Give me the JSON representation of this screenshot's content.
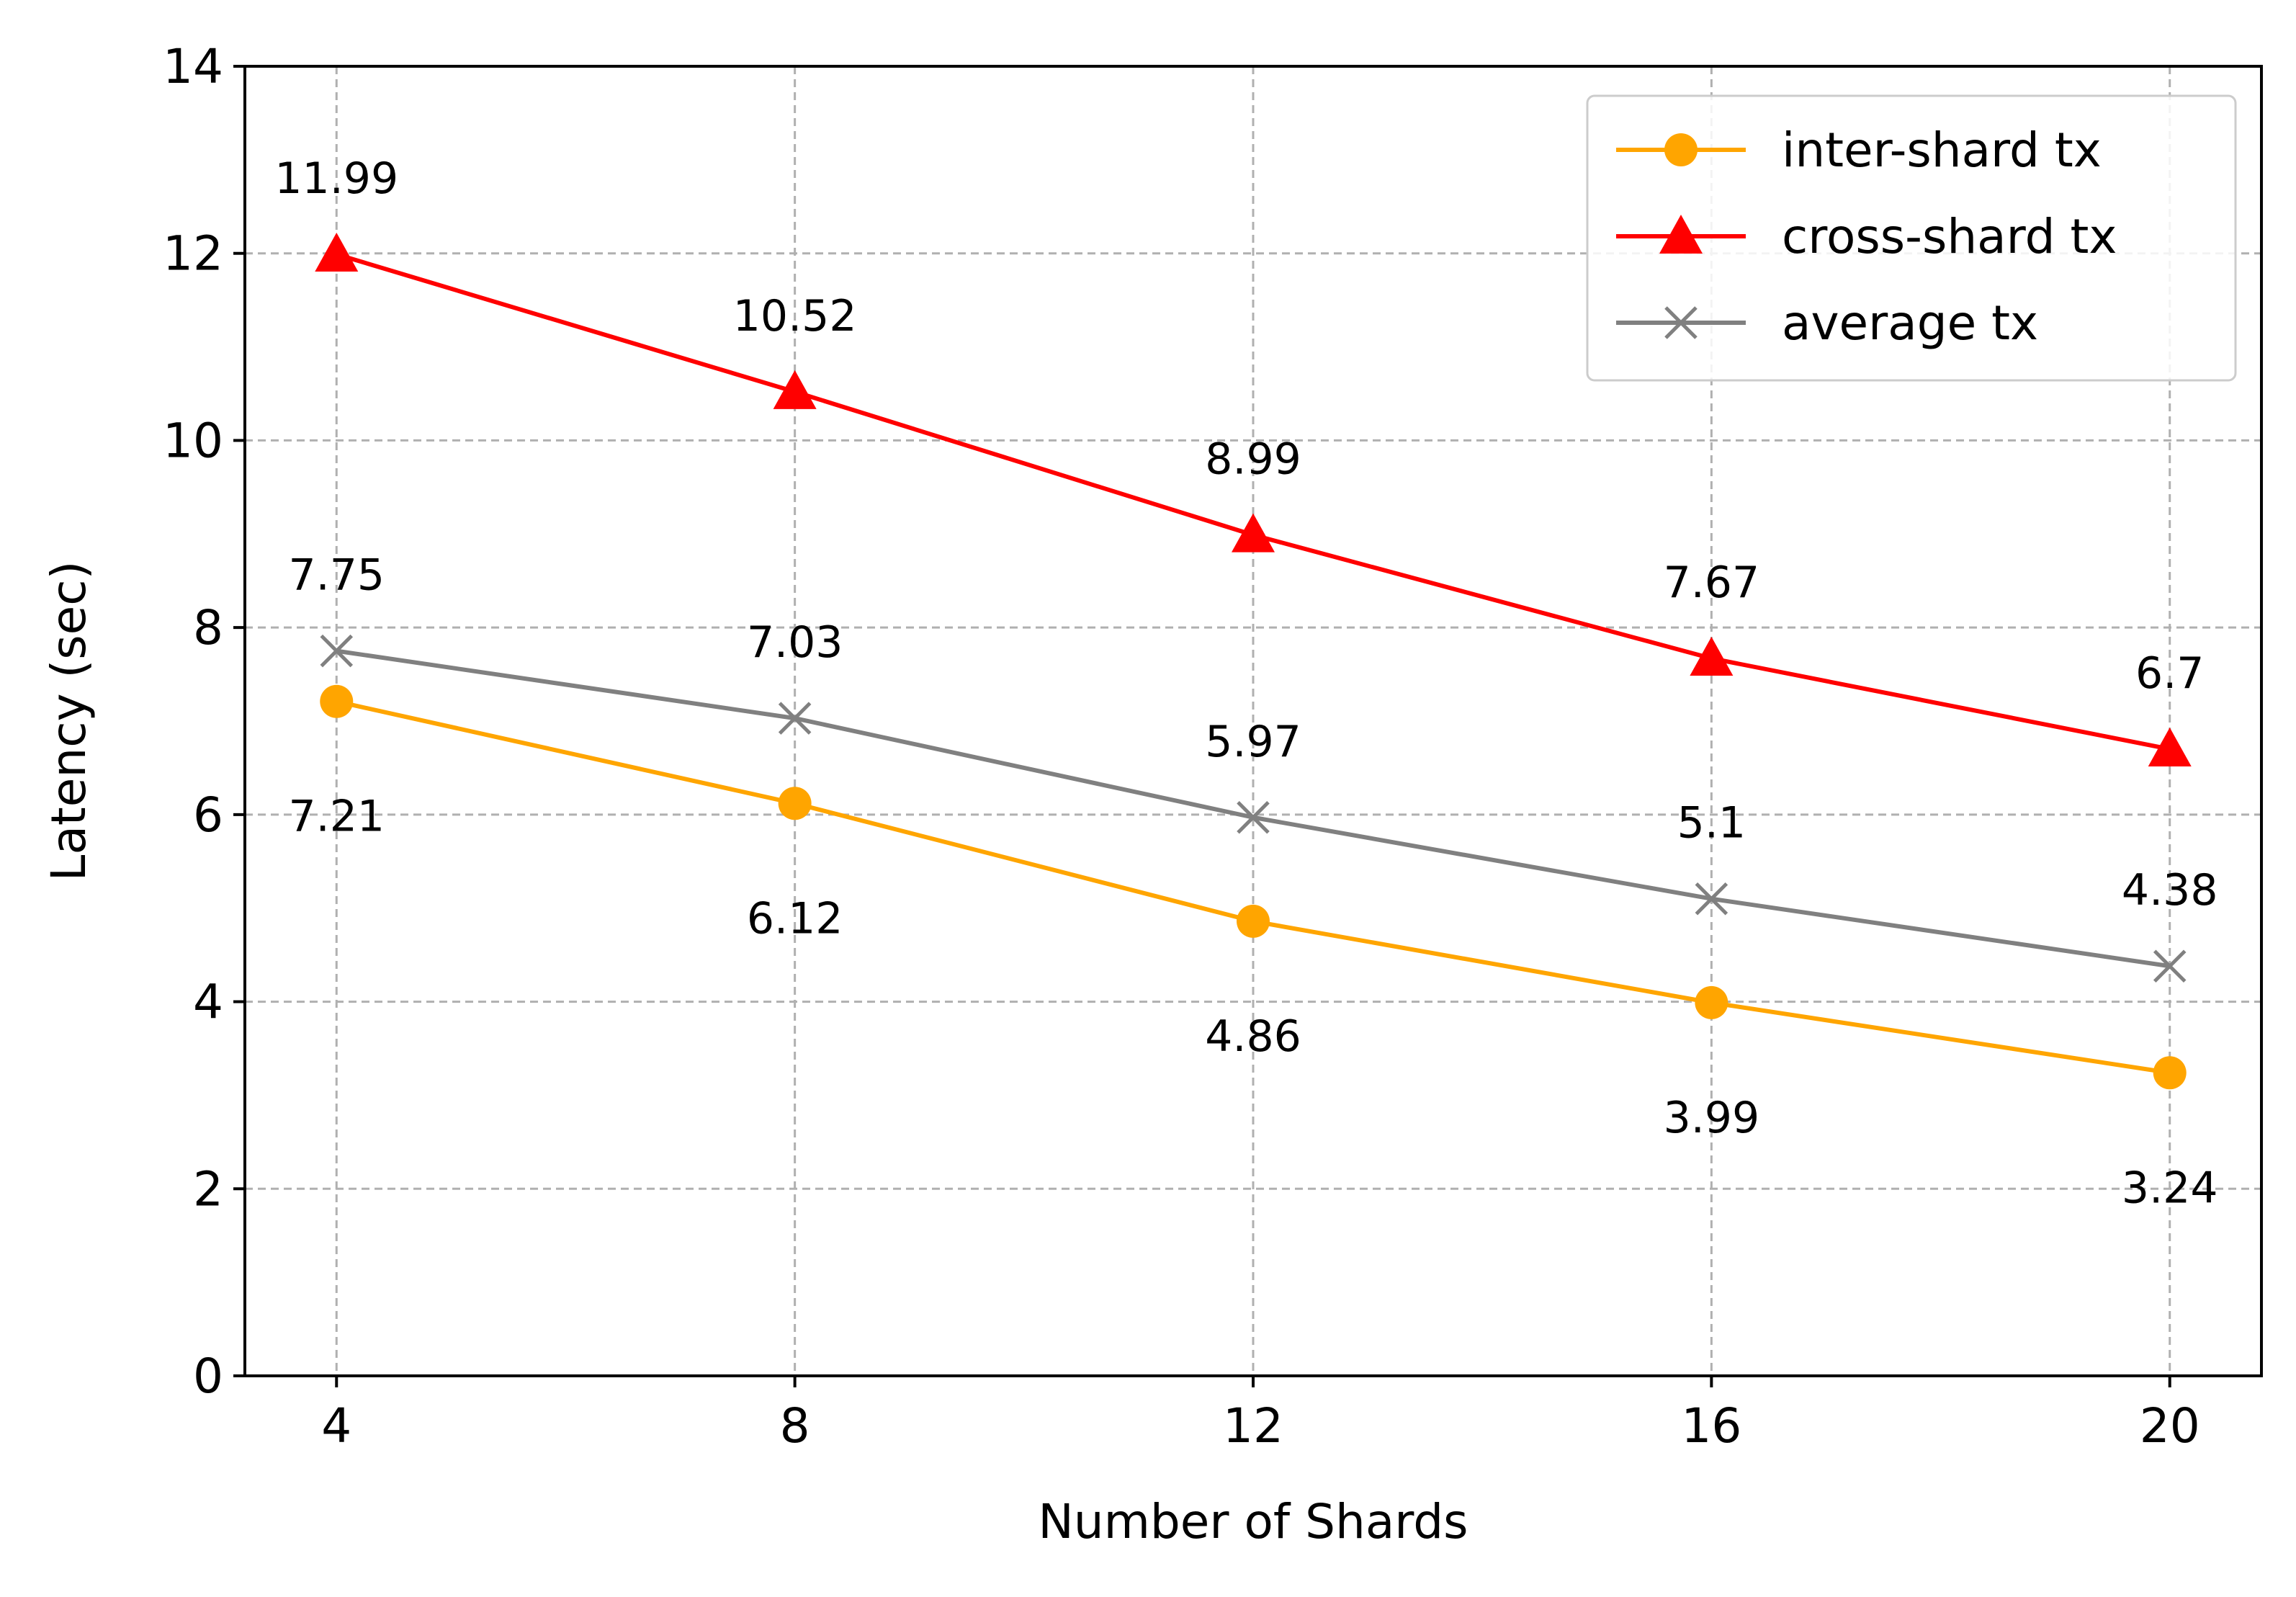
{
  "chart_data": {
    "type": "line",
    "title": "",
    "xlabel": "Number of Shards",
    "ylabel": "Latency (sec)",
    "x": [
      4,
      8,
      12,
      16,
      20
    ],
    "xlim": [
      3.2,
      20.8
    ],
    "ylim": [
      0,
      14
    ],
    "xticks": [
      4,
      8,
      12,
      16,
      20
    ],
    "yticks": [
      0,
      2,
      4,
      6,
      8,
      10,
      12,
      14
    ],
    "grid": true,
    "legend_position": "top-right",
    "series": [
      {
        "name": "inter-shard tx",
        "color": "#FFA500",
        "marker": "circle",
        "values": [
          7.21,
          6.12,
          4.86,
          3.99,
          3.24
        ],
        "label_placement": "below",
        "labels": [
          "7.21",
          "6.12",
          "4.86",
          "3.99",
          "3.24"
        ]
      },
      {
        "name": "cross-shard tx",
        "color": "#FF0000",
        "marker": "triangle",
        "values": [
          11.99,
          10.52,
          8.99,
          7.67,
          6.7
        ],
        "label_placement": "above",
        "labels": [
          "11.99",
          "10.52",
          "8.99",
          "7.67",
          "6.7"
        ]
      },
      {
        "name": "average tx",
        "color": "#808080",
        "marker": "x",
        "values": [
          7.75,
          7.03,
          5.97,
          5.1,
          4.38
        ],
        "label_placement": "above",
        "labels": [
          "7.75",
          "7.03",
          "5.97",
          "5.1",
          "4.38"
        ]
      }
    ]
  }
}
